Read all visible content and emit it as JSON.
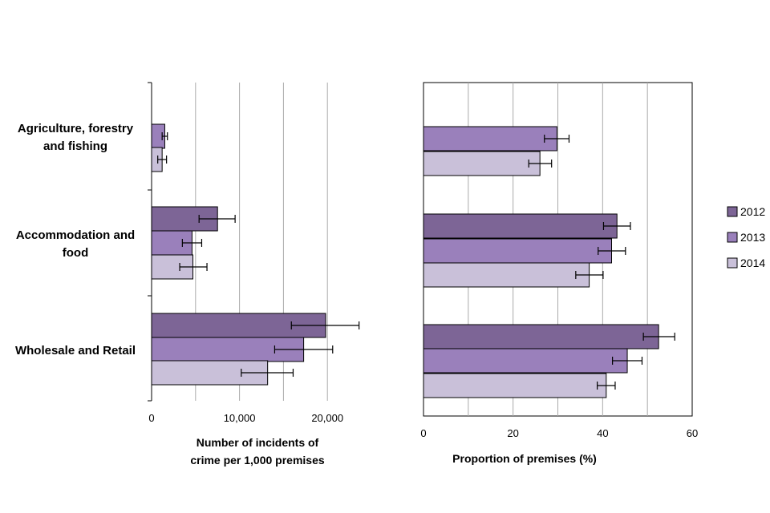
{
  "chart_data": [
    {
      "type": "bar",
      "orientation": "horizontal",
      "categories": [
        "Agriculture, forestry and fishing",
        "Accommodation and food",
        "Wholesale and Retail"
      ],
      "category_lines": [
        [
          "Agriculture, forestry",
          "and fishing"
        ],
        [
          "Accommodation and",
          "food"
        ],
        [
          "Wholesale and Retail"
        ]
      ],
      "series": [
        {
          "name": "2012",
          "values": [
            null,
            7500,
            19800
          ],
          "err_low": [
            null,
            5400,
            15900
          ],
          "err_high": [
            null,
            9500,
            23600
          ]
        },
        {
          "name": "2013",
          "values": [
            1500,
            4600,
            17300
          ],
          "err_low": [
            1200,
            3500,
            14000
          ],
          "err_high": [
            1800,
            5700,
            20600
          ]
        },
        {
          "name": "2014",
          "values": [
            1200,
            4700,
            13200
          ],
          "err_low": [
            700,
            3200,
            10200
          ],
          "err_high": [
            1700,
            6300,
            16100
          ]
        }
      ],
      "xlim": [
        0,
        25000
      ],
      "xticks": [
        0,
        10000,
        20000
      ],
      "xtick_labels": [
        "0",
        "10,000",
        "20,000"
      ],
      "grid_values": [
        5000,
        10000,
        15000,
        20000
      ],
      "xlabel_lines": [
        "Number of incidents of",
        "crime per 1,000 premises"
      ]
    },
    {
      "type": "bar",
      "orientation": "horizontal",
      "categories": [
        "Agriculture, forestry and fishing",
        "Accommodation and food",
        "Wholesale and Retail"
      ],
      "series": [
        {
          "name": "2012",
          "values": [
            null,
            43.2,
            52.5
          ],
          "err_low": [
            null,
            40.2,
            49.1
          ],
          "err_high": [
            null,
            46.2,
            56.1
          ]
        },
        {
          "name": "2013",
          "values": [
            29.8,
            42.0,
            45.5
          ],
          "err_low": [
            27.0,
            39.0,
            42.2
          ],
          "err_high": [
            32.5,
            45.1,
            48.8
          ]
        },
        {
          "name": "2014",
          "values": [
            26.0,
            37.0,
            40.8
          ],
          "err_low": [
            23.5,
            34.0,
            38.8
          ],
          "err_high": [
            28.6,
            40.1,
            42.8
          ]
        }
      ],
      "xlim": [
        0,
        60
      ],
      "xticks": [
        0,
        20,
        40,
        60
      ],
      "xtick_labels": [
        "0",
        "20",
        "40",
        "60"
      ],
      "grid_values": [
        10,
        20,
        30,
        40,
        50
      ],
      "xlabel_lines": [
        "Proportion of premises (%)"
      ]
    }
  ],
  "legend": [
    {
      "label": "2012",
      "color": "#7d6596"
    },
    {
      "label": "2013",
      "color": "#9a80bb"
    },
    {
      "label": "2014",
      "color": "#c9c0d9"
    }
  ],
  "colors": {
    "2012": "#7d6596",
    "2013": "#9a80bb",
    "2014": "#c9c0d9",
    "grid": "#aaaaaa",
    "border": "#000000"
  }
}
